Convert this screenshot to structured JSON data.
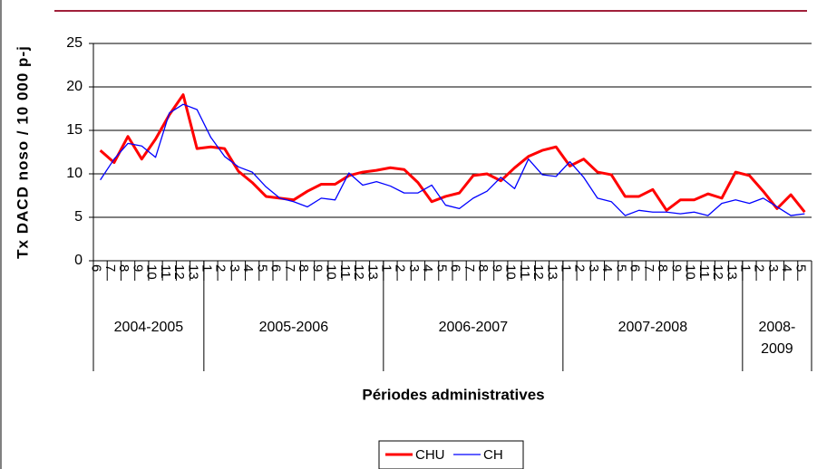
{
  "chart_data": {
    "type": "line",
    "y_label": "Tx DACD noso / 10 000 p-j",
    "x_label": "Périodes administratives",
    "category_groups": [
      {
        "label": "2004-2005",
        "categories": [
          "6",
          "7",
          "8",
          "9",
          "10",
          "11",
          "12",
          "13"
        ]
      },
      {
        "label": "2005-2006",
        "categories": [
          "1",
          "2",
          "3",
          "4",
          "5",
          "6",
          "7",
          "8",
          "9",
          "10",
          "11",
          "12",
          "13"
        ]
      },
      {
        "label": "2006-2007",
        "categories": [
          "1",
          "2",
          "3",
          "4",
          "5",
          "6",
          "7",
          "8",
          "9",
          "10",
          "11",
          "12",
          "13"
        ]
      },
      {
        "label": "2007-2008",
        "categories": [
          "1",
          "2",
          "3",
          "4",
          "5",
          "6",
          "7",
          "8",
          "9",
          "10",
          "11",
          "12",
          "13"
        ]
      },
      {
        "label": "2008-2009",
        "categories": [
          "1",
          "2",
          "3",
          "4",
          "5"
        ]
      }
    ],
    "series": [
      {
        "name": "CHU",
        "color": "#ff0000",
        "width": 3,
        "values": [
          12.7,
          11.3,
          14.3,
          11.7,
          14.0,
          16.8,
          19.1,
          12.9,
          13.1,
          12.9,
          10.3,
          9.0,
          7.4,
          7.2,
          7.0,
          8.0,
          8.8,
          8.8,
          9.8,
          10.2,
          10.4,
          10.7,
          10.5,
          9.0,
          6.8,
          7.4,
          7.8,
          9.8,
          10.0,
          9.2,
          10.7,
          12.0,
          12.7,
          13.1,
          10.9,
          11.7,
          10.2,
          9.9,
          7.4,
          7.4,
          8.2,
          5.8,
          7.0,
          7.0,
          7.7,
          7.2,
          10.2,
          9.8,
          8.0,
          6.0,
          7.6,
          5.6
        ]
      },
      {
        "name": "CH",
        "color": "#0000ff",
        "width": 1.3,
        "values": [
          9.3,
          11.7,
          13.5,
          13.2,
          11.9,
          17.0,
          18.0,
          17.4,
          14.2,
          12.0,
          10.8,
          10.2,
          8.5,
          7.2,
          6.8,
          6.2,
          7.2,
          7.0,
          10.1,
          8.7,
          9.1,
          8.6,
          7.8,
          7.8,
          8.7,
          6.4,
          6.0,
          7.2,
          8.0,
          9.6,
          8.3,
          11.7,
          9.9,
          9.7,
          11.4,
          9.6,
          7.2,
          6.8,
          5.2,
          5.8,
          5.6,
          5.6,
          5.4,
          5.6,
          5.2,
          6.6,
          7.0,
          6.6,
          7.2,
          6.2,
          5.2,
          5.4
        ]
      }
    ],
    "ylim": [
      0,
      25
    ],
    "yticks": [
      0,
      5,
      10,
      15,
      20,
      25
    ],
    "grid": true
  }
}
